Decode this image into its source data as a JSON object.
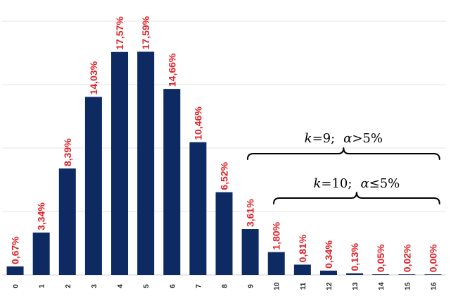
{
  "chart_data": {
    "type": "bar",
    "categories": [
      "0",
      "1",
      "2",
      "3",
      "4",
      "5",
      "6",
      "7",
      "8",
      "9",
      "10",
      "11",
      "12",
      "13",
      "14",
      "15",
      "16"
    ],
    "values": [
      0.67,
      3.34,
      8.39,
      14.03,
      17.57,
      17.59,
      14.66,
      10.46,
      6.52,
      3.61,
      1.8,
      0.81,
      0.34,
      0.13,
      0.05,
      0.02,
      0.0
    ],
    "data_labels": [
      "0,67%",
      "3,34%",
      "8,39%",
      "14,03%",
      "17,57%",
      "17,59%",
      "14,66%",
      "10,46%",
      "6,52%",
      "3,61%",
      "1,80%",
      "0,81%",
      "0,34%",
      "0,13%",
      "0,05%",
      "0,02%",
      "0,00%"
    ],
    "ylim": [
      0,
      20
    ],
    "grid": true,
    "colors": {
      "bar": "#0e2a63",
      "label": "#e21f26"
    },
    "annotations": [
      {
        "from_category": "9",
        "to_category": "16",
        "k_symbol": "k",
        "k_value": "=9;",
        "alpha_symbol": "α",
        "alpha_rel": ">5%"
      },
      {
        "from_category": "10",
        "to_category": "16",
        "k_symbol": "k",
        "k_value": "=10;",
        "alpha_symbol": "α",
        "alpha_rel": "≤5%"
      }
    ]
  }
}
